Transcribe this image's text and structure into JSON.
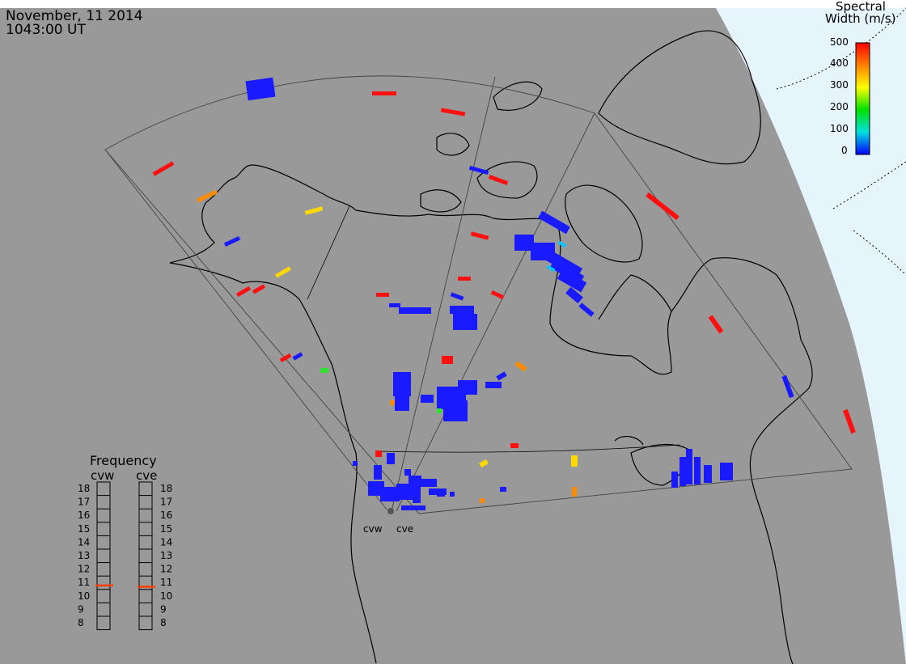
{
  "header": {
    "date": "November, 11 2014",
    "time": "1043:00 UT"
  },
  "colorbar": {
    "title_line1": "Spectral",
    "title_line2": "Width (m/s)",
    "tick_labels": [
      "500",
      "400",
      "300",
      "200",
      "100",
      "0"
    ],
    "colors": [
      "#ff0000",
      "#ff8000",
      "#ffff00",
      "#00e000",
      "#00e0e0",
      "#0000ff"
    ]
  },
  "frequency_panel": {
    "title": "Frequency",
    "left_radar": "cvw",
    "right_radar": "cve",
    "levels": [
      "18",
      "17",
      "16",
      "15",
      "14",
      "13",
      "12",
      "11",
      "10",
      "9",
      "8"
    ],
    "cvw_value": 10.8,
    "cve_value": 10.7
  },
  "radars": {
    "site_labels": [
      "cvw",
      "cve"
    ]
  },
  "colors": {
    "land_background": "#999999",
    "ocean_light": "#e6f4fc",
    "coast": "#000000",
    "blue": "#1a1aff",
    "red": "#ff1010",
    "orange": "#ff8c00",
    "yellow": "#ffd800",
    "green": "#30e030",
    "cyan": "#00c8ff"
  }
}
